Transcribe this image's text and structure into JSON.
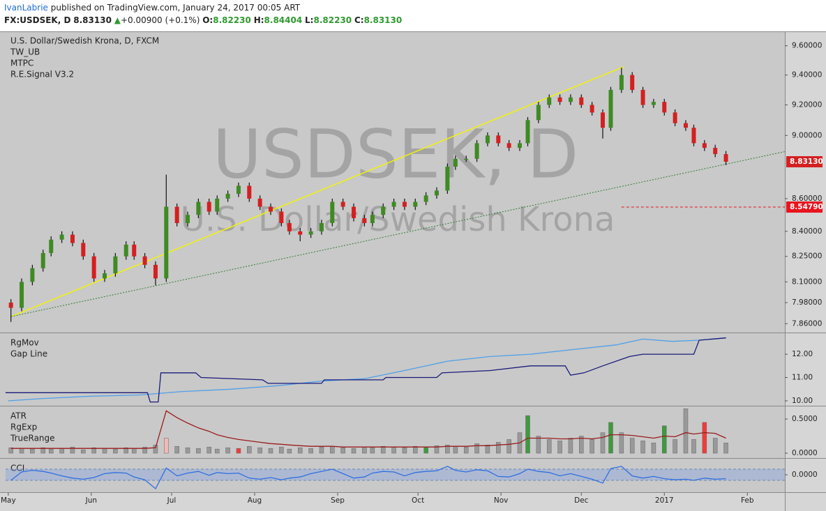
{
  "header": {
    "author": "IvanLabrie",
    "published": "published on TradingView.com, January 24, 2017 00:05 ART",
    "symbol": "FX:USDSEK, D",
    "price": "8.83130",
    "change": "+0.00900 (+0.1%)",
    "ohlc": [
      {
        "key": "O:",
        "value": "8.82230"
      },
      {
        "key": "H:",
        "value": "8.84404"
      },
      {
        "key": "L:",
        "value": "8.82230"
      },
      {
        "key": "C:",
        "value": "8.83130"
      }
    ]
  },
  "chart_data": [
    {
      "type": "candlestick",
      "title": "U.S. Dollar/Swedish Krona, D, FXCM",
      "indicators": [
        "TW_UB",
        "MTPC",
        "R.E.Signal V3.2"
      ],
      "watermark": [
        "USDSEK, D",
        "U.S. Dollar/Swedish Krona"
      ],
      "x": [
        1,
        5,
        9,
        13,
        16,
        20,
        24,
        28,
        32,
        36,
        40,
        44,
        47,
        51,
        55,
        59,
        63,
        67,
        71,
        75,
        78,
        82,
        86,
        90,
        94,
        98,
        102,
        105,
        109,
        113,
        117,
        121,
        125,
        129,
        133,
        136,
        140,
        144,
        148,
        152,
        156,
        160,
        164,
        167,
        171,
        175,
        179,
        183,
        187,
        191,
        194,
        198,
        202,
        206,
        210,
        214,
        218,
        222,
        225,
        229,
        233,
        237,
        241,
        245,
        249,
        253,
        256,
        260,
        264,
        268
      ],
      "open": [
        7.98,
        7.95,
        8.1,
        8.18,
        8.27,
        8.35,
        8.38,
        8.33,
        8.25,
        8.12,
        8.15,
        8.25,
        8.32,
        8.25,
        8.2,
        8.12,
        8.55,
        8.45,
        8.5,
        8.58,
        8.52,
        8.6,
        8.63,
        8.68,
        8.6,
        8.55,
        8.52,
        8.45,
        8.4,
        8.38,
        8.4,
        8.45,
        8.58,
        8.55,
        8.48,
        8.45,
        8.5,
        8.55,
        8.58,
        8.55,
        8.58,
        8.62,
        8.65,
        8.8,
        8.85,
        8.85,
        8.95,
        9.0,
        8.95,
        8.92,
        8.95,
        9.1,
        9.2,
        9.25,
        9.22,
        9.25,
        9.2,
        9.15,
        9.05,
        9.3,
        9.4,
        9.3,
        9.2,
        9.22,
        9.15,
        9.08,
        9.05,
        8.95,
        8.92,
        8.88
      ],
      "high": [
        8.0,
        8.12,
        8.2,
        8.29,
        8.37,
        8.4,
        8.4,
        8.35,
        8.27,
        8.17,
        8.27,
        8.34,
        8.34,
        8.27,
        8.22,
        8.75,
        8.57,
        8.52,
        8.6,
        8.6,
        8.62,
        8.65,
        8.7,
        8.7,
        8.62,
        8.57,
        8.54,
        8.47,
        8.42,
        8.42,
        8.47,
        8.6,
        8.6,
        8.57,
        8.5,
        8.52,
        8.57,
        8.6,
        8.6,
        8.6,
        8.64,
        8.67,
        8.82,
        8.87,
        8.87,
        8.97,
        9.02,
        9.02,
        8.97,
        8.97,
        9.12,
        9.22,
        9.27,
        9.27,
        9.27,
        9.27,
        9.22,
        9.17,
        9.32,
        9.45,
        9.42,
        9.32,
        9.24,
        9.24,
        9.17,
        9.1,
        9.07,
        8.97,
        8.94,
        8.9
      ],
      "low": [
        7.87,
        7.93,
        8.08,
        8.16,
        8.25,
        8.33,
        8.31,
        8.23,
        8.1,
        8.1,
        8.13,
        8.23,
        8.23,
        8.18,
        8.08,
        8.1,
        8.43,
        8.43,
        8.48,
        8.5,
        8.5,
        8.58,
        8.61,
        8.58,
        8.53,
        8.5,
        8.43,
        8.38,
        8.34,
        8.36,
        8.38,
        8.43,
        8.53,
        8.46,
        8.43,
        8.43,
        8.48,
        8.53,
        8.53,
        8.53,
        8.56,
        8.6,
        8.63,
        8.78,
        8.83,
        8.83,
        8.93,
        8.93,
        8.9,
        8.9,
        8.93,
        9.08,
        9.18,
        9.2,
        9.2,
        9.18,
        9.13,
        8.98,
        9.03,
        9.28,
        9.28,
        9.18,
        9.18,
        9.13,
        9.06,
        9.03,
        8.93,
        8.9,
        8.86,
        8.81
      ],
      "close": [
        7.95,
        8.1,
        8.18,
        8.27,
        8.35,
        8.38,
        8.33,
        8.25,
        8.12,
        8.15,
        8.25,
        8.32,
        8.25,
        8.2,
        8.12,
        8.55,
        8.45,
        8.5,
        8.58,
        8.52,
        8.6,
        8.63,
        8.68,
        8.6,
        8.55,
        8.52,
        8.45,
        8.4,
        8.38,
        8.4,
        8.45,
        8.58,
        8.55,
        8.48,
        8.45,
        8.5,
        8.55,
        8.58,
        8.55,
        8.58,
        8.62,
        8.65,
        8.8,
        8.85,
        8.85,
        8.95,
        9.0,
        8.95,
        8.92,
        8.95,
        9.1,
        9.2,
        9.25,
        9.22,
        9.25,
        9.2,
        9.15,
        9.05,
        9.3,
        9.4,
        9.3,
        9.2,
        9.22,
        9.15,
        9.08,
        9.05,
        8.95,
        8.92,
        8.88,
        8.8313
      ],
      "up_color": "#3f8a24",
      "down_color": "#d42020",
      "log_scale": true,
      "ylim": [
        7.81,
        9.7
      ],
      "yticks": [
        {
          "value": 9.6,
          "label": "9.60000"
        },
        {
          "value": 9.4,
          "label": "9.40000"
        },
        {
          "value": 9.2,
          "label": "9.20000"
        },
        {
          "value": 9.0,
          "label": "9.00000"
        },
        {
          "value": 8.6,
          "label": "8.60000"
        },
        {
          "value": 8.4,
          "label": "8.40000"
        },
        {
          "value": 8.25,
          "label": "8.25000"
        },
        {
          "value": 8.1,
          "label": "8.10000"
        },
        {
          "value": 7.98,
          "label": "7.98000"
        },
        {
          "value": 7.86,
          "label": "7.86000"
        }
      ],
      "xlim": [
        -1,
        290
      ],
      "xticks": [
        {
          "value": 0,
          "label": "May"
        },
        {
          "value": 31,
          "label": "Jun"
        },
        {
          "value": 61,
          "label": "Jul"
        },
        {
          "value": 92,
          "label": "Aug"
        },
        {
          "value": 123,
          "label": "Sep"
        },
        {
          "value": 153,
          "label": "Oct"
        },
        {
          "value": 184,
          "label": "Nov"
        },
        {
          "value": 214,
          "label": "Dec"
        },
        {
          "value": 245,
          "label": "2017"
        },
        {
          "value": 276,
          "label": "Feb"
        }
      ],
      "trendlines": [
        {
          "x": [
            1,
            230
          ],
          "y": [
            7.9,
            9.457
          ],
          "color": "#f2f20a",
          "dash": false
        },
        {
          "x": [
            1,
            290
          ],
          "y": [
            7.9,
            8.896
          ],
          "color": "#2e7d32",
          "dash": true
        }
      ],
      "price_line": {
        "x": [
          229,
          290
        ],
        "value": 8.5479,
        "label": "8.54790",
        "color": "#e8141e"
      },
      "last_label": "8.83130"
    },
    {
      "type": "line",
      "indicators": [
        "RgMov",
        "Gap Line"
      ],
      "ylim": [
        9.79,
        12.9
      ],
      "yticks": [
        {
          "value": 10,
          "label": "10.00"
        },
        {
          "value": 11,
          "label": "11.00"
        },
        {
          "value": 12,
          "label": "12.00"
        }
      ],
      "series": [
        {
          "color": "#4f9fe8",
          "x": [
            0,
            13,
            31,
            49,
            65,
            83,
            101,
            117,
            133,
            148,
            164,
            180,
            195,
            211,
            227,
            237,
            248,
            258,
            268
          ],
          "values": [
            10.0,
            10.1,
            10.2,
            10.25,
            10.4,
            10.5,
            10.65,
            10.85,
            10.95,
            11.3,
            11.7,
            11.9,
            12.0,
            12.2,
            12.4,
            12.65,
            12.55,
            12.6,
            12.7
          ]
        },
        {
          "color": "#1a1a7a",
          "x": [
            -1,
            52,
            53,
            56,
            57,
            70,
            72,
            95,
            97,
            117,
            118,
            140,
            141,
            160,
            162,
            180,
            195,
            208,
            210,
            215,
            222,
            232,
            237,
            256,
            258,
            268
          ],
          "values": [
            10.35,
            10.35,
            9.95,
            9.95,
            11.2,
            11.2,
            11.0,
            10.9,
            10.75,
            10.75,
            10.9,
            10.9,
            11.0,
            11.0,
            11.2,
            11.3,
            11.5,
            11.5,
            11.1,
            11.2,
            11.5,
            11.9,
            12.0,
            12.0,
            12.6,
            12.7
          ]
        }
      ]
    },
    {
      "type": "bar",
      "indicators": [
        "ATR",
        "RgExp",
        "TrueRange"
      ],
      "ylim": [
        -0.071,
        0.684
      ],
      "yticks": [
        {
          "value": 0.5,
          "label": "0.5000"
        },
        {
          "value": 0,
          "label": "0.0000"
        }
      ],
      "x": [
        1,
        5,
        9,
        13,
        16,
        20,
        24,
        28,
        32,
        36,
        40,
        44,
        47,
        51,
        55,
        59,
        63,
        67,
        71,
        75,
        78,
        82,
        86,
        90,
        94,
        98,
        102,
        105,
        109,
        113,
        117,
        121,
        125,
        129,
        133,
        136,
        140,
        144,
        148,
        152,
        156,
        160,
        164,
        167,
        171,
        175,
        179,
        183,
        187,
        191,
        194,
        198,
        202,
        206,
        210,
        214,
        218,
        222,
        225,
        229,
        233,
        237,
        241,
        245,
        249,
        253,
        256,
        260,
        264,
        268
      ],
      "values": [
        0.08,
        0.07,
        0.06,
        0.08,
        0.06,
        0.07,
        0.09,
        0.05,
        0.08,
        0.07,
        0.06,
        0.08,
        0.07,
        0.09,
        0.12,
        0.22,
        0.1,
        0.08,
        0.07,
        0.09,
        0.06,
        0.08,
        0.07,
        0.1,
        0.08,
        0.07,
        0.09,
        0.06,
        0.08,
        0.07,
        0.09,
        0.1,
        0.08,
        0.07,
        0.09,
        0.08,
        0.1,
        0.09,
        0.08,
        0.1,
        0.09,
        0.11,
        0.12,
        0.1,
        0.09,
        0.14,
        0.12,
        0.16,
        0.2,
        0.3,
        0.55,
        0.25,
        0.2,
        0.18,
        0.22,
        0.25,
        0.2,
        0.3,
        0.45,
        0.3,
        0.22,
        0.18,
        0.15,
        0.4,
        0.2,
        0.65,
        0.2,
        0.45,
        0.22,
        0.15
      ],
      "colors": [
        "#999",
        "#999",
        "#999",
        "#999",
        "#999",
        "#999",
        "#999",
        "#999",
        "#999",
        "#999",
        "#999",
        "#999",
        "#999",
        "#999",
        "#999",
        "#f4b8b8",
        "#999",
        "#999",
        "#999",
        "#999",
        "#999",
        "#999",
        "#f23a3a",
        "#999",
        "#999",
        "#999",
        "#999",
        "#999",
        "#999",
        "#999",
        "#999",
        "#999",
        "#999",
        "#999",
        "#999",
        "#999",
        "#999",
        "#999",
        "#999",
        "#999",
        "#3e9a3e",
        "#999",
        "#999",
        "#999",
        "#999",
        "#999",
        "#999",
        "#999",
        "#999",
        "#999",
        "#3e9a3e",
        "#999",
        "#999",
        "#999",
        "#999",
        "#999",
        "#999",
        "#999",
        "#3e9a3e",
        "#999",
        "#999",
        "#999",
        "#999",
        "#3e9a3e",
        "#999",
        "#999",
        "#999",
        "#f23a3a",
        "#999",
        "#999"
      ],
      "line": {
        "color": "#9a1c1c",
        "values": [
          0.07,
          0.07,
          0.07,
          0.07,
          0.07,
          0.07,
          0.07,
          0.07,
          0.07,
          0.07,
          0.07,
          0.07,
          0.07,
          0.07,
          0.08,
          0.62,
          0.52,
          0.44,
          0.37,
          0.32,
          0.27,
          0.23,
          0.2,
          0.18,
          0.16,
          0.14,
          0.13,
          0.12,
          0.11,
          0.1,
          0.1,
          0.1,
          0.09,
          0.09,
          0.09,
          0.09,
          0.09,
          0.09,
          0.09,
          0.09,
          0.09,
          0.09,
          0.1,
          0.1,
          0.1,
          0.11,
          0.11,
          0.12,
          0.13,
          0.15,
          0.22,
          0.22,
          0.22,
          0.21,
          0.21,
          0.22,
          0.21,
          0.23,
          0.27,
          0.27,
          0.26,
          0.24,
          0.22,
          0.25,
          0.24,
          0.3,
          0.28,
          0.3,
          0.29,
          0.22
        ]
      }
    },
    {
      "type": "line",
      "indicators": [
        "CCI"
      ],
      "ylim": [
        -312,
        287
      ],
      "yticks": [
        {
          "value": 0,
          "label": "0.0000"
        }
      ],
      "bands": [
        -100,
        100
      ],
      "series": [
        {
          "color": "#2f6fe0",
          "x": [
            1,
            5,
            9,
            13,
            16,
            20,
            24,
            28,
            32,
            36,
            40,
            44,
            47,
            51,
            55,
            59,
            63,
            67,
            71,
            75,
            78,
            82,
            86,
            90,
            94,
            98,
            102,
            105,
            109,
            113,
            117,
            121,
            125,
            129,
            133,
            136,
            140,
            144,
            148,
            152,
            156,
            160,
            164,
            167,
            171,
            175,
            179,
            183,
            187,
            191,
            194,
            198,
            202,
            206,
            210,
            214,
            218,
            222,
            225,
            229,
            233,
            237,
            241,
            245,
            249,
            253,
            256,
            260,
            264,
            268
          ],
          "values": [
            -100,
            50,
            80,
            60,
            30,
            -20,
            -60,
            -80,
            -50,
            20,
            40,
            30,
            -40,
            -90,
            -250,
            120,
            -20,
            30,
            60,
            -10,
            40,
            20,
            30,
            -60,
            -80,
            -50,
            -90,
            -60,
            -40,
            20,
            60,
            100,
            20,
            -60,
            -40,
            30,
            60,
            50,
            -20,
            40,
            60,
            70,
            150,
            80,
            50,
            90,
            70,
            -30,
            -40,
            20,
            100,
            60,
            40,
            -20,
            20,
            -30,
            -80,
            -150,
            110,
            150,
            -20,
            -60,
            -30,
            -70,
            -90,
            -80,
            -100,
            -60,
            -80,
            -70
          ]
        }
      ]
    }
  ]
}
